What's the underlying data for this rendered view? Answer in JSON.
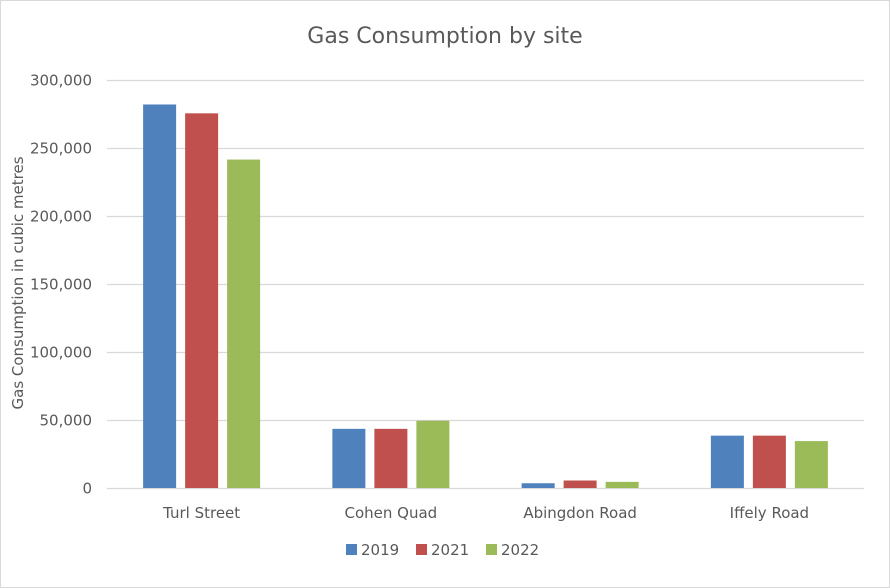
{
  "chart_data": {
    "type": "bar",
    "title": "Gas Consumption  by site",
    "xlabel": "",
    "ylabel": "Gas Consumption in cubic metres",
    "categories": [
      "Turl Street",
      "Cohen Quad",
      "Abingdon Road",
      "Iffely Road"
    ],
    "series": [
      {
        "name": "2019",
        "color": "#4f81bd",
        "values": [
          282000,
          43500,
          3500,
          38500
        ]
      },
      {
        "name": "2021",
        "color": "#c0504d",
        "values": [
          275500,
          43500,
          5500,
          38500
        ]
      },
      {
        "name": "2022",
        "color": "#9bbb59",
        "values": [
          241500,
          49500,
          4500,
          34500
        ]
      }
    ],
    "ylim": [
      0,
      300000
    ],
    "yticks": [
      0,
      50000,
      100000,
      150000,
      200000,
      250000,
      300000
    ],
    "ytick_labels": [
      "0",
      "50,000",
      "100,000",
      "150,000",
      "200,000",
      "250,000",
      "300,000"
    ],
    "grid": true,
    "legend_position": "bottom",
    "gridline_color": "#d9d9d9"
  }
}
